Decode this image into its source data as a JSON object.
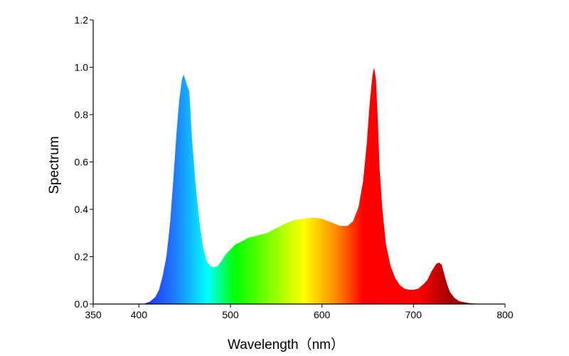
{
  "chart_data": {
    "type": "area",
    "title": "",
    "xlabel": "Wavelength（nm）",
    "ylabel": "Spectrum",
    "xlim": [
      350,
      800
    ],
    "ylim": [
      0,
      1.2
    ],
    "x_ticks": [
      "350",
      "400",
      "500",
      "600",
      "700",
      "800"
    ],
    "y_ticks": [
      "0.0",
      "0.2",
      "0.4",
      "0.6",
      "0.8",
      "1.0",
      "1.2"
    ],
    "grid": false,
    "fill": "rainbow gradient by wavelength",
    "colors": {
      "violet_blue": "#1a1aff",
      "blue": "#1e7fff",
      "cyan": "#00ffff",
      "green": "#00ff00",
      "yellow": "#ffff00",
      "orange": "#ff8c00",
      "red": "#ff0000",
      "dark_red": "#a00000"
    },
    "series": [
      {
        "x": [
          405,
          412,
          418,
          422,
          426,
          430,
          434,
          438,
          441,
          444,
          447,
          449,
          452,
          455,
          458,
          462,
          466,
          470,
          474,
          478,
          482,
          486,
          490,
          495,
          500,
          505,
          510,
          520,
          530,
          540,
          550,
          560,
          570,
          580,
          590,
          600,
          610,
          620,
          628,
          634,
          640,
          645,
          649,
          652,
          655,
          657,
          659,
          661,
          663,
          666,
          670,
          675,
          680,
          685,
          690,
          695,
          700,
          705,
          710,
          715,
          720,
          725,
          728,
          731,
          734,
          737,
          740,
          745,
          750,
          760,
          770,
          785,
          800
        ],
        "y": [
          0.0,
          0.01,
          0.03,
          0.06,
          0.12,
          0.2,
          0.34,
          0.55,
          0.72,
          0.86,
          0.95,
          0.97,
          0.93,
          0.9,
          0.7,
          0.5,
          0.35,
          0.24,
          0.18,
          0.16,
          0.155,
          0.16,
          0.18,
          0.21,
          0.23,
          0.25,
          0.26,
          0.28,
          0.29,
          0.3,
          0.32,
          0.34,
          0.355,
          0.36,
          0.365,
          0.36,
          0.345,
          0.33,
          0.33,
          0.35,
          0.41,
          0.52,
          0.68,
          0.84,
          0.96,
          1.0,
          0.95,
          0.78,
          0.57,
          0.4,
          0.25,
          0.16,
          0.11,
          0.08,
          0.065,
          0.06,
          0.06,
          0.065,
          0.08,
          0.1,
          0.14,
          0.17,
          0.175,
          0.165,
          0.12,
          0.08,
          0.05,
          0.025,
          0.012,
          0.004,
          0.001,
          0.0,
          0.0
        ]
      }
    ]
  }
}
